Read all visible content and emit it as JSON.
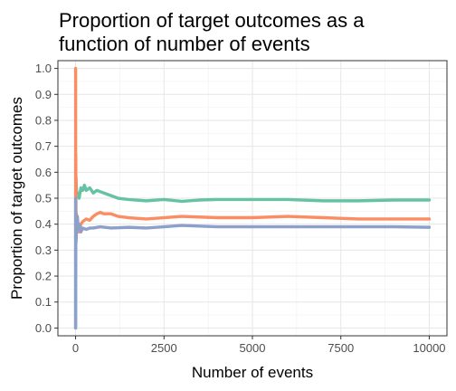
{
  "chart_data": {
    "type": "line",
    "title_lines": [
      "Proportion of target outcomes as a",
      "function of number of events"
    ],
    "xlabel": "Number of events",
    "ylabel": "Proportion of target outcomes",
    "xlim": [
      -500,
      10500
    ],
    "ylim": [
      -0.03,
      1.03
    ],
    "xticks": [
      0,
      2500,
      5000,
      7500,
      10000
    ],
    "xtick_labels": [
      "0",
      "2500",
      "5000",
      "7500",
      "10000"
    ],
    "yticks": [
      0.0,
      0.1,
      0.2,
      0.3,
      0.4,
      0.5,
      0.6,
      0.7,
      0.8,
      0.9,
      1.0
    ],
    "ytick_labels": [
      "0.0",
      "0.1",
      "0.2",
      "0.3",
      "0.4",
      "0.5",
      "0.6",
      "0.7",
      "0.8",
      "0.9",
      "1.0"
    ],
    "grid": true,
    "legend": "none",
    "series": [
      {
        "color": "#66c2a5",
        "points": [
          [
            1,
            0.0
          ],
          [
            2,
            0.5
          ],
          [
            3,
            0.67
          ],
          [
            5,
            0.6
          ],
          [
            8,
            0.5
          ],
          [
            12,
            0.58
          ],
          [
            20,
            0.55
          ],
          [
            35,
            0.51
          ],
          [
            60,
            0.52
          ],
          [
            100,
            0.5
          ],
          [
            150,
            0.54
          ],
          [
            200,
            0.53
          ],
          [
            250,
            0.55
          ],
          [
            300,
            0.53
          ],
          [
            400,
            0.54
          ],
          [
            500,
            0.52
          ],
          [
            600,
            0.53
          ],
          [
            700,
            0.525
          ],
          [
            800,
            0.52
          ],
          [
            1000,
            0.51
          ],
          [
            1200,
            0.5
          ],
          [
            1500,
            0.495
          ],
          [
            2000,
            0.49
          ],
          [
            2500,
            0.495
          ],
          [
            3000,
            0.488
          ],
          [
            3500,
            0.493
          ],
          [
            4000,
            0.495
          ],
          [
            5000,
            0.495
          ],
          [
            6000,
            0.495
          ],
          [
            7000,
            0.49
          ],
          [
            8000,
            0.49
          ],
          [
            9000,
            0.493
          ],
          [
            10000,
            0.493
          ]
        ]
      },
      {
        "color": "#fc8d62",
        "points": [
          [
            1,
            1.0
          ],
          [
            2,
            0.5
          ],
          [
            3,
            0.33
          ],
          [
            4,
            0.5
          ],
          [
            6,
            0.67
          ],
          [
            10,
            0.5
          ],
          [
            15,
            0.4
          ],
          [
            25,
            0.44
          ],
          [
            40,
            0.38
          ],
          [
            60,
            0.4
          ],
          [
            100,
            0.37
          ],
          [
            150,
            0.4
          ],
          [
            200,
            0.41
          ],
          [
            300,
            0.42
          ],
          [
            400,
            0.415
          ],
          [
            500,
            0.43
          ],
          [
            600,
            0.44
          ],
          [
            700,
            0.445
          ],
          [
            800,
            0.44
          ],
          [
            1000,
            0.44
          ],
          [
            1200,
            0.43
          ],
          [
            1500,
            0.425
          ],
          [
            2000,
            0.42
          ],
          [
            2500,
            0.425
          ],
          [
            3000,
            0.43
          ],
          [
            4000,
            0.425
          ],
          [
            5000,
            0.425
          ],
          [
            6000,
            0.43
          ],
          [
            7000,
            0.425
          ],
          [
            8000,
            0.42
          ],
          [
            9000,
            0.42
          ],
          [
            10000,
            0.42
          ]
        ]
      },
      {
        "color": "#8da0cb",
        "points": [
          [
            1,
            0.0
          ],
          [
            2,
            0.5
          ],
          [
            3,
            0.33
          ],
          [
            5,
            0.2
          ],
          [
            8,
            0.38
          ],
          [
            12,
            0.33
          ],
          [
            20,
            0.35
          ],
          [
            30,
            0.4
          ],
          [
            50,
            0.43
          ],
          [
            80,
            0.38
          ],
          [
            100,
            0.4
          ],
          [
            150,
            0.37
          ],
          [
            200,
            0.385
          ],
          [
            300,
            0.38
          ],
          [
            400,
            0.385
          ],
          [
            500,
            0.385
          ],
          [
            700,
            0.39
          ],
          [
            1000,
            0.385
          ],
          [
            1500,
            0.388
          ],
          [
            2000,
            0.385
          ],
          [
            2500,
            0.39
          ],
          [
            3000,
            0.395
          ],
          [
            4000,
            0.39
          ],
          [
            5000,
            0.39
          ],
          [
            6000,
            0.39
          ],
          [
            7000,
            0.39
          ],
          [
            8000,
            0.39
          ],
          [
            9000,
            0.39
          ],
          [
            10000,
            0.388
          ]
        ]
      }
    ]
  }
}
